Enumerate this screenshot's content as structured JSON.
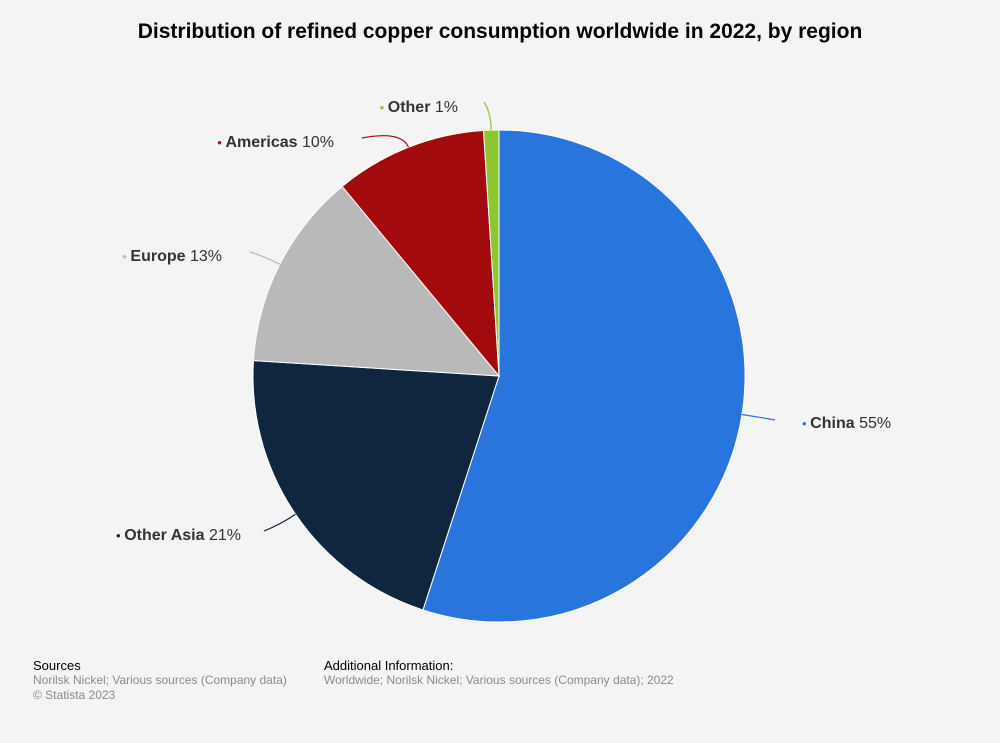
{
  "chart_data": {
    "type": "pie",
    "title": "Distribution of refined copper consumption worldwide in 2022, by region",
    "unit": "%",
    "slices": [
      {
        "label": "China",
        "value": 55,
        "value_label": "55%",
        "color": "#2876dd"
      },
      {
        "label": "Other Asia",
        "value": 21,
        "value_label": "21%",
        "color": "#10263e"
      },
      {
        "label": "Europe",
        "value": 13,
        "value_label": "13%",
        "color": "#b9b9b9"
      },
      {
        "label": "Americas",
        "value": 10,
        "value_label": "10%",
        "color": "#a30a0e"
      },
      {
        "label": "Other",
        "value": 1,
        "value_label": "1%",
        "color": "#8dc631"
      }
    ]
  },
  "footer": {
    "sources_heading": "Sources",
    "sources_text": "Norilsk Nickel; Various sources (Company data)",
    "copyright": "© Statista 2023",
    "additional_heading": "Additional Information:",
    "additional_text": "Worldwide; Norilsk Nickel; Various sources (Company data); 2022"
  }
}
